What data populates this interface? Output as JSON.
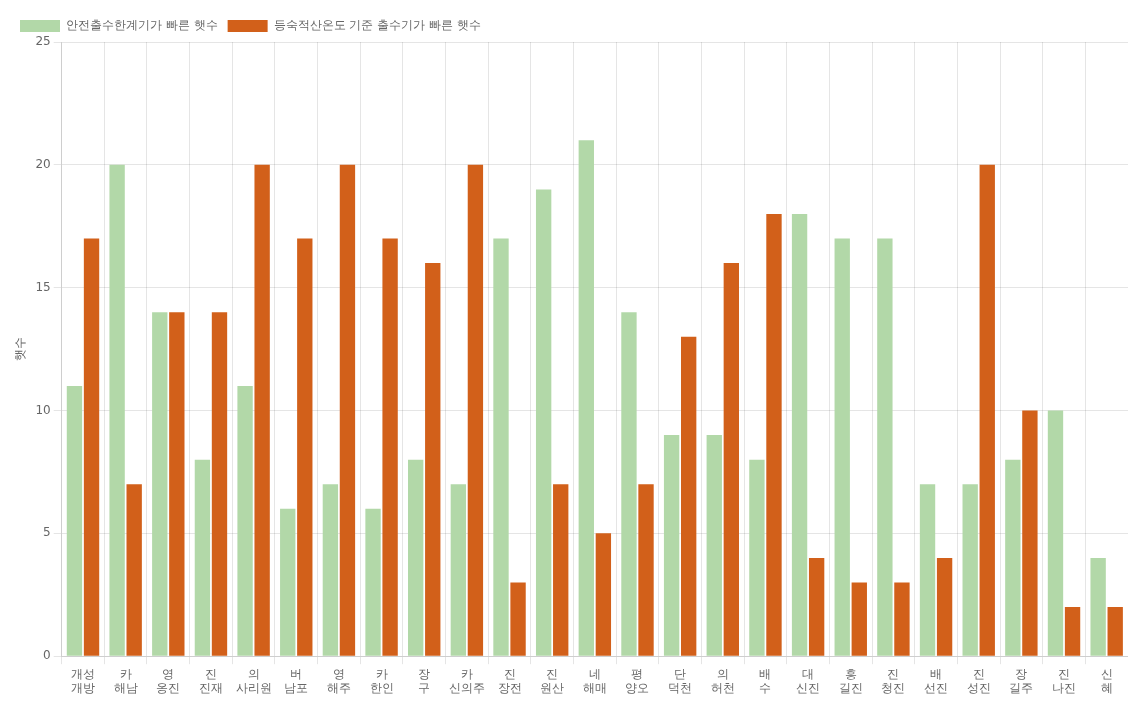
{
  "chart_data": {
    "type": "bar",
    "categories": [
      "개성\n개방",
      "카\n해남",
      "영\n옹진",
      "진\n진재",
      "의\n사리원",
      "버\n남포",
      "영\n해주",
      "카\n한인",
      "장\n구",
      "카\n신의주",
      "진\n장전",
      "진\n원산",
      "네\n해매",
      "평\n양오",
      "단\n덕천",
      "의\n허천",
      "배\n수",
      "대\n신진",
      "흥\n길진",
      "진\n청진",
      "배\n선진",
      "진\n성진",
      "장\n길주",
      "진\n나진",
      "신\n혜"
    ],
    "series": [
      {
        "name": "안전출수한계기가 빠른 햇수",
        "color": "#b2d8a8",
        "values": [
          11,
          20,
          14,
          8,
          11,
          6,
          7,
          6,
          8,
          7,
          17,
          19,
          21,
          14,
          9,
          9,
          8,
          18,
          17,
          17,
          7,
          7,
          8,
          10,
          4
        ]
      },
      {
        "name": "등숙적산온도 기준 출수기가 빠른 햇수",
        "color": "#d2601a",
        "values": [
          17,
          7,
          14,
          14,
          20,
          17,
          20,
          17,
          16,
          20,
          3,
          7,
          5,
          7,
          13,
          16,
          18,
          4,
          3,
          3,
          4,
          20,
          10,
          2,
          2
        ]
      }
    ],
    "ylabel": "햇수",
    "ylim": [
      0,
      25
    ],
    "yticks": [
      0,
      5,
      10,
      15,
      20,
      25
    ],
    "grid": true,
    "legend": "upper left"
  }
}
